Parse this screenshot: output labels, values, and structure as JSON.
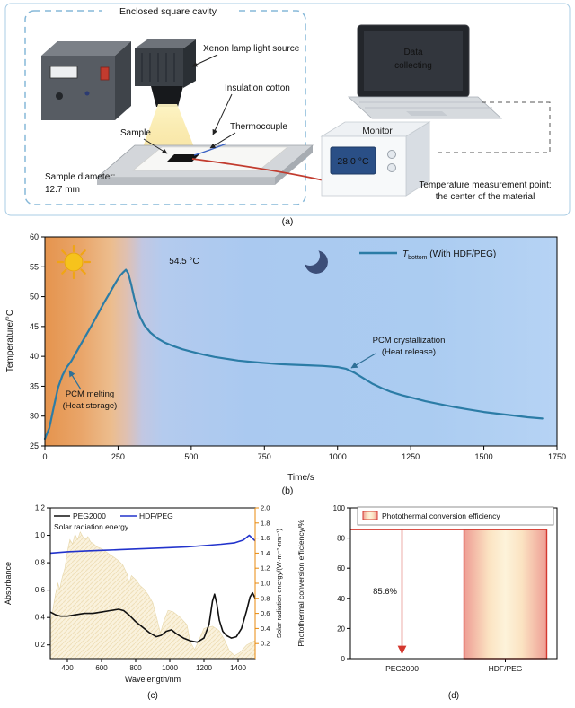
{
  "figure": {
    "panel_a_label": "(a)",
    "panel_b_label": "(b)",
    "panel_c_label": "(c)",
    "panel_d_label": "(d)"
  },
  "diagram": {
    "cavity_label": "Enclosed square cavity",
    "xenon_label": "Xenon lamp light source",
    "insulation_label": "Insulation cotton",
    "sample_label": "Sample",
    "thermocouple_label": "Thermocouple",
    "sample_diameter_line1": "Sample diameter:",
    "sample_diameter_line2": "12.7 mm",
    "laptop_line1": "Data",
    "laptop_line2": "collecting",
    "monitor_label": "Monitor",
    "monitor_reading": "28.0 °C",
    "measurement_note_line1": "Temperature measurement point:",
    "measurement_note_line2": "the center of the material"
  },
  "chart_data": [
    {
      "id": "temperature-curve",
      "type": "line",
      "xlabel": "Time/s",
      "ylabel": "Temperature/°C",
      "xlim": [
        0,
        1750
      ],
      "ylim": [
        25,
        60
      ],
      "xticks": [
        0,
        250,
        500,
        750,
        1000,
        1250,
        1500,
        1750
      ],
      "yticks": [
        25,
        30,
        35,
        40,
        45,
        50,
        55,
        60
      ],
      "grid": false,
      "legend": {
        "position": "top-right",
        "series_label_parts": [
          "T",
          "bottom",
          " (With HDF/PEG)"
        ]
      },
      "line_color": "#2b7ca6",
      "annotations": {
        "peak": "54.5 °C",
        "melting": [
          "PCM melting",
          "(Heat storage)"
        ],
        "crystallization": [
          "PCM crystallization",
          "(Heat release)"
        ]
      },
      "series": [
        {
          "name": "T_bottom (With HDF/PEG)",
          "points": [
            [
              0,
              26.2
            ],
            [
              15,
              28.0
            ],
            [
              30,
              31.5
            ],
            [
              45,
              34.8
            ],
            [
              60,
              36.8
            ],
            [
              75,
              38.2
            ],
            [
              90,
              39.2
            ],
            [
              105,
              40.5
            ],
            [
              120,
              41.8
            ],
            [
              140,
              43.5
            ],
            [
              160,
              45.2
            ],
            [
              180,
              47.0
            ],
            [
              200,
              48.8
            ],
            [
              220,
              50.5
            ],
            [
              240,
              52.2
            ],
            [
              255,
              53.4
            ],
            [
              268,
              54.1
            ],
            [
              277,
              54.5
            ],
            [
              285,
              53.9
            ],
            [
              295,
              52.0
            ],
            [
              305,
              49.8
            ],
            [
              315,
              48.0
            ],
            [
              325,
              46.6
            ],
            [
              340,
              45.2
            ],
            [
              360,
              44.0
            ],
            [
              385,
              43.0
            ],
            [
              410,
              42.3
            ],
            [
              440,
              41.7
            ],
            [
              470,
              41.2
            ],
            [
              500,
              40.8
            ],
            [
              540,
              40.3
            ],
            [
              580,
              39.9
            ],
            [
              620,
              39.6
            ],
            [
              660,
              39.3
            ],
            [
              700,
              39.1
            ],
            [
              750,
              38.9
            ],
            [
              800,
              38.7
            ],
            [
              850,
              38.6
            ],
            [
              900,
              38.5
            ],
            [
              950,
              38.4
            ],
            [
              1000,
              38.2
            ],
            [
              1030,
              37.9
            ],
            [
              1060,
              37.2
            ],
            [
              1090,
              36.3
            ],
            [
              1120,
              35.4
            ],
            [
              1150,
              34.7
            ],
            [
              1180,
              34.1
            ],
            [
              1220,
              33.5
            ],
            [
              1260,
              33.0
            ],
            [
              1300,
              32.5
            ],
            [
              1350,
              32.0
            ],
            [
              1400,
              31.5
            ],
            [
              1450,
              31.1
            ],
            [
              1500,
              30.7
            ],
            [
              1550,
              30.4
            ],
            [
              1600,
              30.1
            ],
            [
              1650,
              29.8
            ],
            [
              1700,
              29.6
            ]
          ]
        }
      ]
    },
    {
      "id": "absorbance-spectra",
      "type": "line",
      "xlabel": "Wavelength/nm",
      "ylabel_left": "Absorbance",
      "ylabel_right": "Solar radiation energy/(W·m⁻²·nm⁻¹)",
      "xlim": [
        300,
        1500
      ],
      "xticks": [
        400,
        600,
        800,
        1000,
        1200,
        1400
      ],
      "ylim_left": [
        0.1,
        1.2
      ],
      "yticks_left": [
        0.2,
        0.4,
        0.6,
        0.8,
        1.0,
        1.2
      ],
      "ylim_right": [
        0.0,
        2.0
      ],
      "yticks_right": [
        0.2,
        0.4,
        0.6,
        0.8,
        1.0,
        1.2,
        1.4,
        1.6,
        1.8,
        2.0
      ],
      "legend": [
        "PEG2000",
        "HDF/PEG",
        "Solar radiation energy"
      ],
      "right_axis_color": "#e8890c",
      "series": [
        {
          "name": "PEG2000",
          "color": "#111111",
          "points": [
            [
              300,
              0.44
            ],
            [
              330,
              0.42
            ],
            [
              360,
              0.41
            ],
            [
              400,
              0.41
            ],
            [
              450,
              0.42
            ],
            [
              500,
              0.43
            ],
            [
              550,
              0.43
            ],
            [
              600,
              0.44
            ],
            [
              650,
              0.45
            ],
            [
              700,
              0.46
            ],
            [
              730,
              0.45
            ],
            [
              760,
              0.42
            ],
            [
              800,
              0.37
            ],
            [
              840,
              0.33
            ],
            [
              880,
              0.29
            ],
            [
              920,
              0.26
            ],
            [
              950,
              0.27
            ],
            [
              980,
              0.3
            ],
            [
              1010,
              0.31
            ],
            [
              1040,
              0.28
            ],
            [
              1080,
              0.25
            ],
            [
              1120,
              0.23
            ],
            [
              1160,
              0.22
            ],
            [
              1200,
              0.25
            ],
            [
              1230,
              0.35
            ],
            [
              1250,
              0.52
            ],
            [
              1262,
              0.57
            ],
            [
              1275,
              0.5
            ],
            [
              1290,
              0.38
            ],
            [
              1310,
              0.3
            ],
            [
              1330,
              0.27
            ],
            [
              1360,
              0.25
            ],
            [
              1390,
              0.26
            ],
            [
              1420,
              0.32
            ],
            [
              1450,
              0.45
            ],
            [
              1470,
              0.55
            ],
            [
              1485,
              0.58
            ],
            [
              1500,
              0.54
            ]
          ]
        },
        {
          "name": "HDF/PEG",
          "color": "#2233cc",
          "points": [
            [
              300,
              0.87
            ],
            [
              400,
              0.88
            ],
            [
              500,
              0.885
            ],
            [
              600,
              0.89
            ],
            [
              700,
              0.895
            ],
            [
              800,
              0.9
            ],
            [
              900,
              0.905
            ],
            [
              1000,
              0.91
            ],
            [
              1100,
              0.915
            ],
            [
              1200,
              0.925
            ],
            [
              1300,
              0.935
            ],
            [
              1380,
              0.945
            ],
            [
              1430,
              0.965
            ],
            [
              1465,
              1.0
            ],
            [
              1500,
              0.96
            ]
          ]
        }
      ],
      "area_series": {
        "name": "Solar radiation energy",
        "axis": "right",
        "fill": "#f7ecd2",
        "points": [
          [
            300,
            0.45
          ],
          [
            315,
            0.65
          ],
          [
            330,
            0.85
          ],
          [
            345,
            1.0
          ],
          [
            355,
            0.92
          ],
          [
            370,
            1.08
          ],
          [
            385,
            1.2
          ],
          [
            400,
            1.42
          ],
          [
            415,
            1.58
          ],
          [
            430,
            1.52
          ],
          [
            445,
            1.65
          ],
          [
            460,
            1.58
          ],
          [
            475,
            1.68
          ],
          [
            490,
            1.62
          ],
          [
            505,
            1.58
          ],
          [
            520,
            1.62
          ],
          [
            535,
            1.55
          ],
          [
            555,
            1.52
          ],
          [
            575,
            1.48
          ],
          [
            600,
            1.46
          ],
          [
            625,
            1.42
          ],
          [
            650,
            1.38
          ],
          [
            675,
            1.34
          ],
          [
            700,
            1.3
          ],
          [
            725,
            1.24
          ],
          [
            750,
            1.12
          ],
          [
            762,
            1.0
          ],
          [
            775,
            1.1
          ],
          [
            800,
            1.05
          ],
          [
            825,
            0.97
          ],
          [
            850,
            0.92
          ],
          [
            875,
            0.84
          ],
          [
            900,
            0.74
          ],
          [
            925,
            0.52
          ],
          [
            945,
            0.34
          ],
          [
            965,
            0.5
          ],
          [
            990,
            0.64
          ],
          [
            1020,
            0.62
          ],
          [
            1060,
            0.55
          ],
          [
            1100,
            0.45
          ],
          [
            1120,
            0.22
          ],
          [
            1145,
            0.12
          ],
          [
            1170,
            0.24
          ],
          [
            1200,
            0.4
          ],
          [
            1250,
            0.43
          ],
          [
            1290,
            0.37
          ],
          [
            1320,
            0.25
          ],
          [
            1350,
            0.1
          ],
          [
            1380,
            0.04
          ],
          [
            1410,
            0.08
          ],
          [
            1450,
            0.18
          ],
          [
            1500,
            0.24
          ]
        ]
      }
    },
    {
      "id": "photothermal-efficiency",
      "type": "bar",
      "ylabel": "Photothermal conversion efficiency/%",
      "ylim": [
        0,
        100
      ],
      "yticks": [
        0,
        20,
        40,
        60,
        80,
        100
      ],
      "categories": [
        "PEG2000",
        "HDF/PEG"
      ],
      "values": [
        0,
        85.6
      ],
      "annotation_value": "85.6%",
      "legend": "Photothermal conversion efficiency",
      "bar_border": "#d4372e"
    }
  ]
}
